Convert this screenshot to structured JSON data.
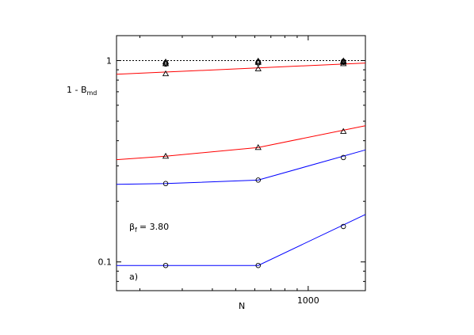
{
  "chart_data": {
    "type": "line",
    "title": "",
    "xlabel": "N",
    "ylabel_main": "1 - B",
    "ylabel_sub": "md",
    "x_scale": "log",
    "y_scale": "log",
    "xlim": [
      160,
      1728
    ],
    "ylim": [
      0.072,
      1.33
    ],
    "x_ticks": [
      {
        "value": 1000,
        "label": "1000"
      }
    ],
    "y_ticks": [
      {
        "value": 0.1,
        "label": "0.1"
      },
      {
        "value": 1,
        "label": "1"
      }
    ],
    "annotations": {
      "beta_main": "β",
      "beta_sub": "f",
      "beta_value": "= 3.80",
      "panel": "a)"
    },
    "reference_line": {
      "y": 1,
      "style": "dotted",
      "color": "#000000"
    },
    "series": [
      {
        "color": "#ff0000",
        "marker": "triangle",
        "x": [
          256,
          620,
          1400
        ],
        "y": [
          0.86,
          0.91,
          0.965
        ],
        "fit_x": [
          160,
          1728
        ],
        "fit_y": [
          0.855,
          0.972
        ]
      },
      {
        "color": "#ff0000",
        "marker": "triangle",
        "x": [
          256,
          620,
          1400
        ],
        "y": [
          0.335,
          0.37,
          0.445
        ],
        "fit_x": [
          160,
          256,
          620,
          1728
        ],
        "fit_y": [
          0.322,
          0.335,
          0.37,
          0.475
        ]
      },
      {
        "color": "#0000ff",
        "marker": "circle",
        "x": [
          256,
          620,
          1400
        ],
        "y": [
          0.245,
          0.255,
          0.33
        ],
        "fit_x": [
          160,
          256,
          620,
          1728
        ],
        "fit_y": [
          0.243,
          0.245,
          0.255,
          0.36
        ]
      },
      {
        "color": "#0000ff",
        "marker": "circle",
        "x": [
          256,
          620,
          1400
        ],
        "y": [
          0.096,
          0.096,
          0.15
        ],
        "fit_x": [
          160,
          256,
          620,
          1728
        ],
        "fit_y": [
          0.096,
          0.096,
          0.096,
          0.172
        ]
      }
    ],
    "near_one_points": [
      {
        "marker": "triangle",
        "x": [
          256,
          620,
          1400
        ],
        "y": [
          0.985,
          0.995,
          0.997
        ]
      },
      {
        "marker": "triangle",
        "x": [
          256,
          620,
          1400
        ],
        "y": [
          0.965,
          0.98,
          0.985
        ]
      },
      {
        "marker": "circle",
        "x": [
          256,
          620,
          1400
        ],
        "y": [
          0.975,
          0.985,
          0.992
        ]
      },
      {
        "marker": "circle",
        "x": [
          256,
          620,
          1400
        ],
        "y": [
          0.96,
          0.972,
          0.98
        ]
      }
    ],
    "grid": false,
    "legend": "none"
  }
}
